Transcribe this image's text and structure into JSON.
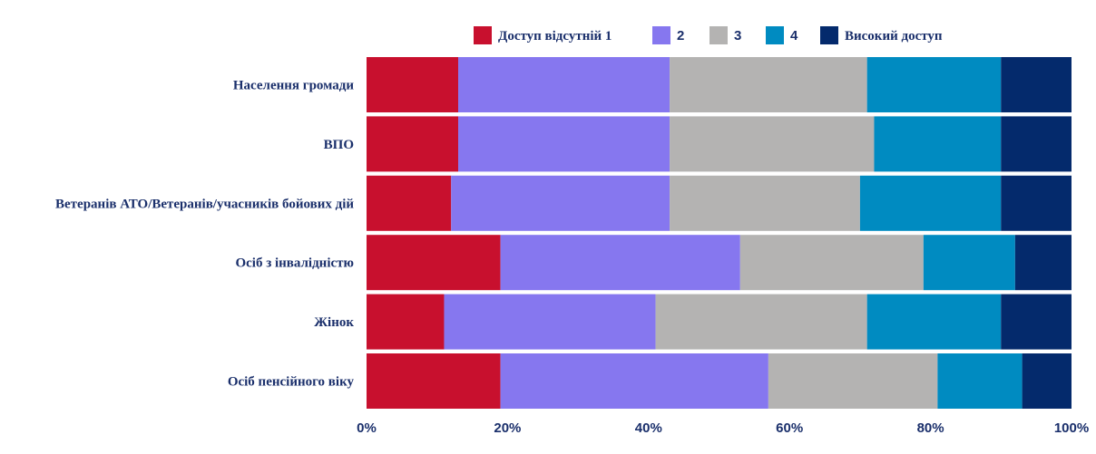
{
  "chart_data": {
    "type": "bar",
    "orientation": "horizontal",
    "stacked": "percent",
    "categories": [
      "Населення громади",
      "ВПО",
      "Ветеранів АТО/Ветеранів/учасників бойових дій",
      "Осіб з інвалідністю",
      "Жінок",
      "Осіб пенсійного віку"
    ],
    "series": [
      {
        "name": "Доступ відсутній 1",
        "color": "#c8102e",
        "values": [
          13,
          13,
          12,
          19,
          11,
          19
        ]
      },
      {
        "name": "2",
        "color": "#8677ef",
        "values": [
          30,
          30,
          31,
          34,
          30,
          38
        ]
      },
      {
        "name": "3",
        "color": "#b4b3b2",
        "values": [
          28,
          29,
          27,
          26,
          30,
          24
        ]
      },
      {
        "name": "4",
        "color": "#008bc1",
        "values": [
          19,
          18,
          20,
          13,
          19,
          12
        ]
      },
      {
        "name": "Високий доступ",
        "color": "#042a6c",
        "values": [
          10,
          10,
          10,
          8,
          10,
          7
        ]
      }
    ],
    "x_ticks": [
      "0%",
      "20%",
      "40%",
      "60%",
      "80%",
      "100%"
    ],
    "xlim": [
      0,
      100
    ],
    "grid": false,
    "legend_position": "top"
  }
}
